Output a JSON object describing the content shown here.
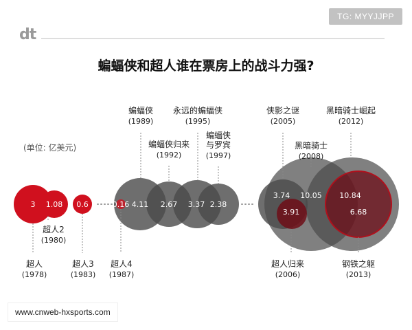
{
  "header": {
    "logo": "dt",
    "badge": "TG: MYYJJPP",
    "title": "蝙蝠侠和超人谁在票房上的战斗力强?",
    "unit": "(单位: 亿美元)"
  },
  "watermark": "www.cnweb-hxsports.com",
  "colors": {
    "red": "#d0101e",
    "darkred": "#6e0e18",
    "gray": "#4a4a4a",
    "light": "#666666"
  },
  "chart_data": {
    "type": "bubble",
    "title": "蝙蝠侠和超人谁在票房上的战斗力强?",
    "unit": "亿美元",
    "films": [
      {
        "name": "超人",
        "year": "(1978)",
        "value": 3,
        "value_label": "3",
        "hero": "superman"
      },
      {
        "name": "超人2",
        "year": "(1980)",
        "value": 1.08,
        "value_label": "1.08",
        "hero": "superman"
      },
      {
        "name": "超人3",
        "year": "(1983)",
        "value": 0.6,
        "value_label": "0.6",
        "hero": "superman"
      },
      {
        "name": "超人4",
        "year": "(1987)",
        "value": 0.16,
        "value_label": "0.16",
        "hero": "superman"
      },
      {
        "name": "蝙蝠侠",
        "year": "(1989)",
        "value": 4.11,
        "value_label": "4.11",
        "hero": "batman"
      },
      {
        "name": "蝙蝠侠归来",
        "year": "(1992)",
        "value": 2.67,
        "value_label": "2.67",
        "hero": "batman"
      },
      {
        "name": "永远的蝙蝠侠",
        "year": "(1995)",
        "value": 3.37,
        "value_label": "3.37",
        "hero": "batman"
      },
      {
        "name": "蝙蝠侠与罗宾",
        "year": "(1997)",
        "value": 2.38,
        "value_label": "2.38",
        "hero": "batman"
      },
      {
        "name": "侠影之谜",
        "year": "(2005)",
        "value": 3.74,
        "value_label": "3.74",
        "hero": "batman"
      },
      {
        "name": "超人归来",
        "year": "(2006)",
        "value": 3.91,
        "value_label": "3.91",
        "hero": "superman"
      },
      {
        "name": "黑暗骑士",
        "year": "(2008)",
        "value": 10.05,
        "value_label": "10.05",
        "hero": "batman"
      },
      {
        "name": "黑暗骑士崛起",
        "year": "(2012)",
        "value": 10.84,
        "value_label": "10.84",
        "hero": "batman"
      },
      {
        "name": "钢铁之躯",
        "year": "(2013)",
        "value": 6.68,
        "value_label": "6.68",
        "hero": "superman"
      }
    ]
  }
}
